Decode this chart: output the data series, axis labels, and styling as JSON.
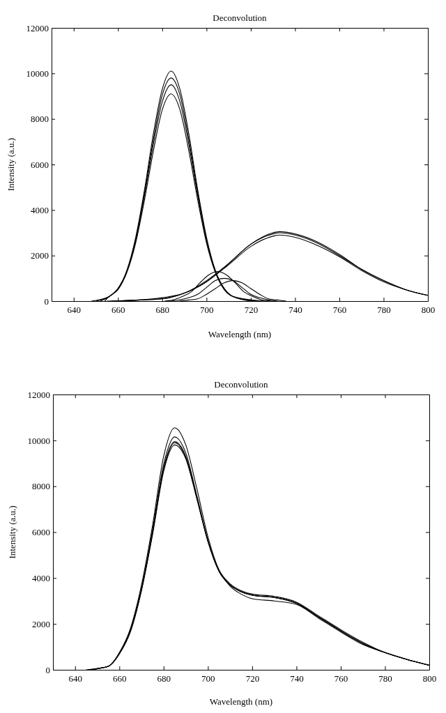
{
  "chart_data": [
    {
      "type": "line",
      "title": "Deconvolution",
      "xlabel": "Wavelength (nm)",
      "ylabel": "Intensity (a.u.)",
      "xlim": [
        630,
        800
      ],
      "xticks": [
        640,
        660,
        680,
        700,
        720,
        740,
        760,
        780,
        800
      ],
      "ylim": [
        0,
        12000
      ],
      "yticks": [
        0,
        2000,
        4000,
        6000,
        8000,
        10000,
        12000
      ],
      "series": [
        {
          "color": "#000000",
          "x": [
            648,
            656,
            660,
            664,
            668,
            672,
            676,
            680,
            684,
            688,
            692,
            696,
            700,
            704,
            708,
            712,
            720
          ],
          "values": [
            0,
            200,
            550,
            1350,
            2800,
            4900,
            7350,
            9300,
            10100,
            9300,
            7350,
            4900,
            2800,
            1350,
            550,
            200,
            0
          ]
        },
        {
          "color": "#000000",
          "x": [
            650,
            656,
            660,
            664,
            668,
            672,
            676,
            680,
            684,
            688,
            692,
            696,
            700,
            704,
            708,
            712,
            722
          ],
          "values": [
            0,
            200,
            550,
            1300,
            2700,
            4750,
            7100,
            9050,
            9800,
            9050,
            7100,
            4750,
            2700,
            1300,
            550,
            200,
            0
          ]
        },
        {
          "color": "#000000",
          "x": [
            652,
            656,
            660,
            664,
            668,
            672,
            676,
            680,
            684,
            688,
            692,
            696,
            700,
            704,
            708,
            712,
            724
          ],
          "values": [
            0,
            200,
            550,
            1300,
            2650,
            4650,
            6900,
            8750,
            9500,
            8750,
            6900,
            4650,
            2650,
            1300,
            550,
            200,
            0
          ]
        },
        {
          "color": "#000000",
          "x": [
            654,
            656,
            660,
            664,
            668,
            672,
            676,
            680,
            684,
            688,
            692,
            696,
            700,
            704,
            708,
            712,
            726
          ],
          "values": [
            0,
            200,
            500,
            1250,
            2550,
            4450,
            6600,
            8400,
            9100,
            8400,
            6600,
            4450,
            2550,
            1250,
            500,
            200,
            0
          ]
        },
        {
          "color": "#000000",
          "x": [
            655,
            670,
            680,
            690,
            700,
            710,
            720,
            730,
            733,
            740,
            750,
            760,
            770,
            780,
            790,
            800
          ],
          "values": [
            0,
            50,
            150,
            350,
            900,
            1650,
            2500,
            3000,
            3050,
            2950,
            2600,
            2050,
            1400,
            900,
            500,
            250
          ]
        },
        {
          "color": "#000000",
          "x": [
            657,
            670,
            680,
            690,
            700,
            710,
            720,
            730,
            733,
            740,
            750,
            760,
            770,
            780,
            790,
            800
          ],
          "values": [
            0,
            50,
            100,
            350,
            850,
            1650,
            2500,
            2950,
            3000,
            2900,
            2550,
            2000,
            1400,
            900,
            500,
            250
          ]
        },
        {
          "color": "#000000",
          "x": [
            659,
            670,
            680,
            690,
            700,
            710,
            720,
            730,
            733,
            740,
            750,
            760,
            770,
            780,
            790,
            800
          ],
          "values": [
            0,
            50,
            100,
            350,
            850,
            1600,
            2400,
            2850,
            2900,
            2800,
            2450,
            1950,
            1350,
            850,
            500,
            250
          ]
        },
        {
          "color": "#000000",
          "x": [
            681,
            685,
            689,
            693,
            697,
            701,
            705,
            709,
            713,
            717,
            721,
            725,
            729
          ],
          "values": [
            0,
            50,
            200,
            400,
            800,
            1150,
            1300,
            1150,
            800,
            400,
            200,
            50,
            0
          ]
        },
        {
          "color": "#000000",
          "x": [
            684,
            688,
            692,
            696,
            700,
            704,
            708,
            712,
            716,
            720,
            724,
            728,
            732
          ],
          "values": [
            0,
            50,
            150,
            300,
            600,
            900,
            1000,
            900,
            600,
            300,
            150,
            50,
            0
          ]
        },
        {
          "color": "#000000",
          "x": [
            688,
            692,
            696,
            700,
            704,
            708,
            712,
            716,
            720,
            724,
            728,
            732,
            736
          ],
          "values": [
            0,
            50,
            100,
            300,
            550,
            800,
            900,
            800,
            550,
            300,
            100,
            50,
            0
          ]
        }
      ]
    },
    {
      "type": "line",
      "title": "Deconvolution",
      "xlabel": "Wavelength (nm)",
      "ylabel": "Intensity (a.u.)",
      "xlim": [
        630,
        800
      ],
      "xticks": [
        640,
        660,
        680,
        700,
        720,
        740,
        760,
        780,
        800
      ],
      "ylim": [
        0,
        12000
      ],
      "yticks": [
        0,
        2000,
        4000,
        6000,
        8000,
        10000,
        12000
      ],
      "series": [
        {
          "color": "#000000",
          "x": [
            645,
            650,
            655,
            660,
            665,
            670,
            675,
            680,
            685,
            690,
            695,
            700,
            705,
            710,
            715,
            720,
            730,
            740,
            750,
            760,
            770,
            780,
            790,
            800
          ],
          "values": [
            0,
            50,
            150,
            750,
            1800,
            3700,
            6300,
            9300,
            10550,
            9800,
            7900,
            5800,
            4350,
            3650,
            3300,
            3100,
            3000,
            2850,
            2250,
            1650,
            1100,
            750,
            450,
            200
          ]
        },
        {
          "color": "#000000",
          "x": [
            646,
            650,
            655,
            660,
            665,
            670,
            675,
            680,
            685,
            690,
            695,
            700,
            705,
            710,
            715,
            720,
            730,
            740,
            750,
            760,
            770,
            780,
            790,
            800
          ],
          "values": [
            0,
            50,
            150,
            700,
            1750,
            3550,
            6100,
            8950,
            10150,
            9450,
            7600,
            5650,
            4350,
            3750,
            3450,
            3300,
            3200,
            2950,
            2350,
            1750,
            1200,
            750,
            450,
            200
          ]
        },
        {
          "color": "#000000",
          "x": [
            647,
            650,
            655,
            660,
            665,
            670,
            675,
            680,
            685,
            690,
            695,
            700,
            705,
            710,
            715,
            720,
            730,
            740,
            750,
            760,
            770,
            780,
            790,
            800
          ],
          "values": [
            0,
            50,
            150,
            700,
            1700,
            3500,
            5950,
            8750,
            9900,
            9250,
            7500,
            5600,
            4300,
            3700,
            3400,
            3250,
            3150,
            2900,
            2300,
            1700,
            1150,
            750,
            450,
            200
          ]
        },
        {
          "color": "#000000",
          "x": [
            648,
            650,
            655,
            660,
            665,
            670,
            675,
            680,
            685,
            690,
            695,
            700,
            705,
            710,
            715,
            720,
            730,
            740,
            750,
            760,
            770,
            780,
            790,
            800
          ],
          "values": [
            0,
            50,
            150,
            700,
            1700,
            3500,
            6000,
            8800,
            9950,
            9300,
            7500,
            5600,
            4300,
            3700,
            3400,
            3250,
            3150,
            2900,
            2300,
            1700,
            1150,
            750,
            450,
            200
          ]
        },
        {
          "color": "#000000",
          "x": [
            649,
            650,
            655,
            660,
            665,
            670,
            675,
            680,
            685,
            690,
            695,
            700,
            705,
            710,
            715,
            720,
            730,
            740,
            750,
            760,
            770,
            780,
            790,
            800
          ],
          "values": [
            0,
            50,
            150,
            700,
            1650,
            3450,
            5900,
            8650,
            9800,
            9200,
            7450,
            5600,
            4300,
            3700,
            3400,
            3250,
            3150,
            2900,
            2300,
            1700,
            1150,
            750,
            450,
            200
          ]
        }
      ]
    }
  ]
}
